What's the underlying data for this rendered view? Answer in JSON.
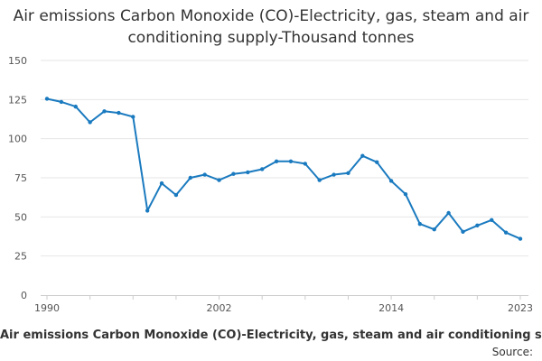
{
  "chart_data": {
    "type": "line",
    "title": "Air emissions Carbon Monoxide (CO)-Electricity, gas, steam and air conditioning supply-Thousand tonnes",
    "xlabel": "Air emissions Carbon Monoxide (CO)-Electricity, gas, steam and air conditioning supply-Thousand tonnes",
    "ylabel": "",
    "xlim": [
      1990,
      2023
    ],
    "ylim": [
      0,
      150
    ],
    "x_ticks": [
      1990,
      2002,
      2014,
      2023
    ],
    "y_ticks": [
      0,
      25,
      50,
      75,
      100,
      125,
      150
    ],
    "grid": true,
    "series": [
      {
        "name": "Carbon Monoxide (CO)",
        "color": "#1a7abf",
        "x": [
          1990,
          1991,
          1992,
          1993,
          1994,
          1995,
          1996,
          1997,
          1998,
          1999,
          2000,
          2001,
          2002,
          2003,
          2004,
          2005,
          2006,
          2007,
          2008,
          2009,
          2010,
          2011,
          2012,
          2013,
          2014,
          2015,
          2016,
          2017,
          2018,
          2019,
          2020,
          2021,
          2022,
          2023
        ],
        "values": [
          125.5,
          123.5,
          120.5,
          110.5,
          117.5,
          116.5,
          114,
          54,
          71.5,
          64,
          75,
          77,
          73.5,
          77.5,
          78.5,
          80.5,
          85.5,
          85.5,
          84,
          73.5,
          77,
          78,
          89,
          85,
          73,
          64.5,
          45.5,
          42,
          52.5,
          40.5,
          44.5,
          48,
          40,
          36
        ]
      }
    ]
  },
  "footer": {
    "caption": "Air emissions Carbon Monoxide (CO)-Electricity, gas, steam and air conditioning supply-Thousand tonnes",
    "source": "Source:"
  }
}
